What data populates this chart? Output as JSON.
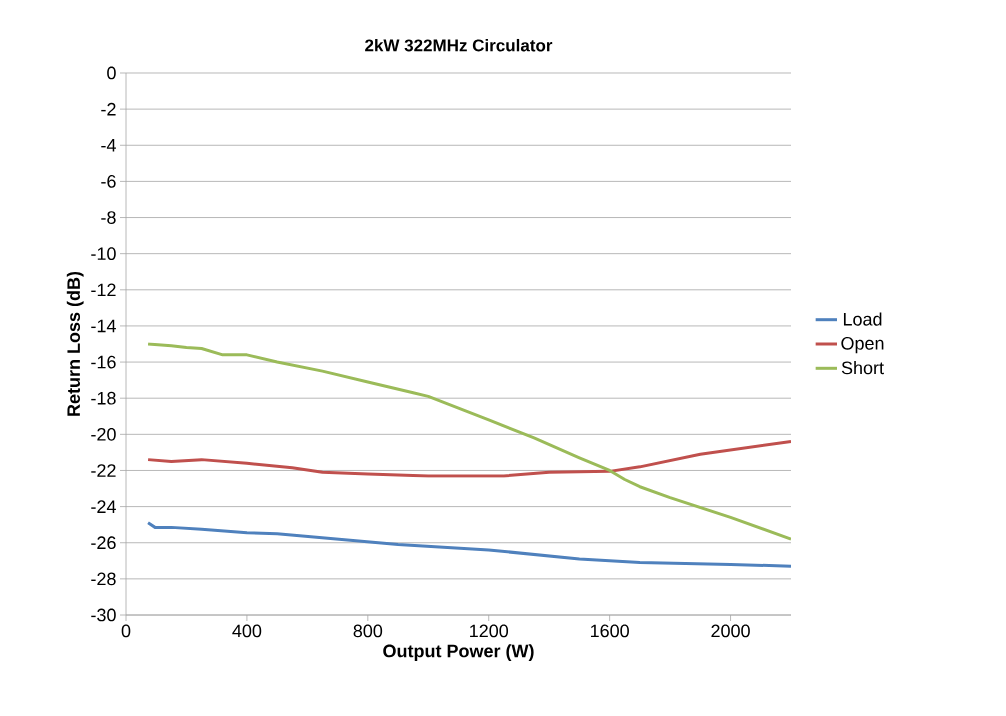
{
  "chart_data": {
    "type": "line",
    "title": "2kW 322MHz Circulator",
    "xlabel": "Output Power (W)",
    "ylabel": "Return Loss (dB)",
    "xlim": [
      0,
      2200
    ],
    "xticks": [
      0,
      400,
      800,
      1200,
      1600,
      2000
    ],
    "ylim": [
      -30,
      0
    ],
    "yticks": [
      0,
      -2,
      -4,
      -6,
      -8,
      -10,
      -12,
      -14,
      -16,
      -18,
      -20,
      -22,
      -24,
      -26,
      -28,
      -30
    ],
    "grid": "y",
    "legend": "right",
    "marker": "none",
    "line_style": "solid",
    "series": [
      {
        "name": "Load",
        "color": "#4f81bd",
        "x": [
          73,
          96,
          150,
          250,
          400,
          500,
          700,
          900,
          1200,
          1500,
          1700,
          2000,
          2200
        ],
        "values": [
          -24.9,
          -25.15,
          -25.15,
          -25.25,
          -25.45,
          -25.5,
          -25.8,
          -26.1,
          -26.4,
          -26.9,
          -27.1,
          -27.2,
          -27.3
        ]
      },
      {
        "name": "Open",
        "color": "#c0504d",
        "x": [
          73,
          150,
          250,
          400,
          550,
          650,
          800,
          1000,
          1250,
          1400,
          1600,
          1700,
          1900,
          2200
        ],
        "values": [
          -21.4,
          -21.5,
          -21.4,
          -21.6,
          -21.85,
          -22.1,
          -22.2,
          -22.3,
          -22.3,
          -22.1,
          -22.05,
          -21.8,
          -21.1,
          -20.4
        ]
      },
      {
        "name": "Short",
        "color": "#9bbb59",
        "x": [
          73,
          150,
          200,
          250,
          320,
          400,
          500,
          650,
          800,
          950,
          1000,
          1200,
          1350,
          1500,
          1600,
          1650,
          1700,
          1800,
          2000,
          2200
        ],
        "values": [
          -15.0,
          -15.1,
          -15.2,
          -15.25,
          -15.6,
          -15.6,
          -16.0,
          -16.5,
          -17.1,
          -17.7,
          -17.9,
          -19.2,
          -20.2,
          -21.3,
          -22.0,
          -22.5,
          -22.9,
          -23.5,
          -24.6,
          -25.8
        ]
      }
    ]
  }
}
